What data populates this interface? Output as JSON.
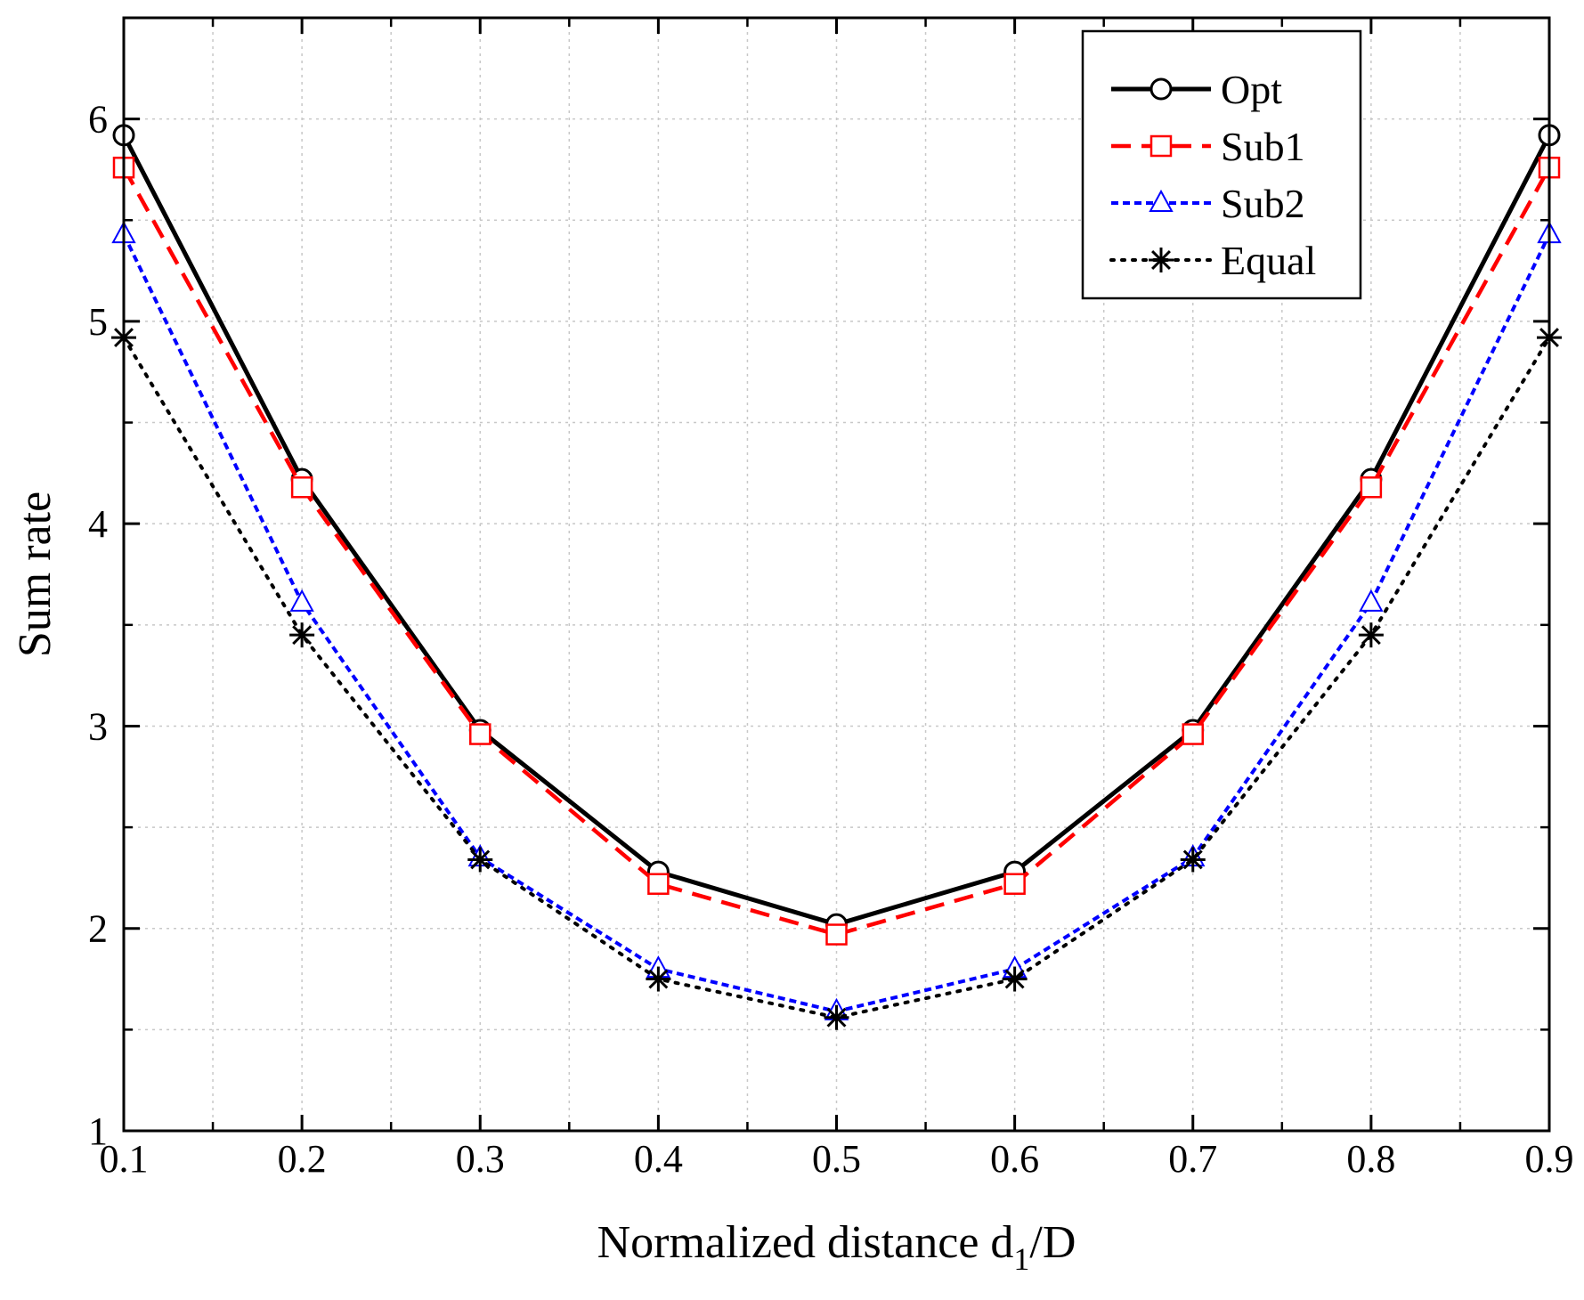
{
  "chart_data": {
    "type": "line",
    "xlabel": "Normalized distance d",
    "xlabel_sub": "1",
    "xlabel_suffix": "/D",
    "ylabel": "Sum rate",
    "xlim": [
      0.1,
      0.9
    ],
    "ylim": [
      1,
      6.5
    ],
    "x_ticks": [
      "0.1",
      "0.2",
      "0.3",
      "0.4",
      "0.5",
      "0.6",
      "0.7",
      "0.8",
      "0.9"
    ],
    "y_ticks": [
      "1",
      "2",
      "3",
      "4",
      "5",
      "6"
    ],
    "grid": true,
    "legend_position": "top-right",
    "x": [
      0.1,
      0.2,
      0.3,
      0.4,
      0.5,
      0.6,
      0.7,
      0.8,
      0.9
    ],
    "series": [
      {
        "name": "Opt",
        "color": "#000000",
        "line": "solid",
        "marker": "circle",
        "values": [
          5.92,
          4.22,
          2.98,
          2.28,
          2.02,
          2.28,
          2.98,
          4.22,
          5.92
        ]
      },
      {
        "name": "Sub1",
        "color": "#ff0000",
        "line": "dashed",
        "marker": "square",
        "values": [
          5.76,
          4.18,
          2.96,
          2.22,
          1.97,
          2.22,
          2.96,
          4.18,
          5.76
        ]
      },
      {
        "name": "Sub2",
        "color": "#0000ff",
        "line": "short-dashed",
        "marker": "triangle",
        "values": [
          5.43,
          3.61,
          2.35,
          1.8,
          1.59,
          1.8,
          2.35,
          3.61,
          5.43
        ]
      },
      {
        "name": "Equal",
        "color": "#000000",
        "line": "dotted",
        "marker": "asterisk",
        "values": [
          4.92,
          3.45,
          2.34,
          1.75,
          1.56,
          1.75,
          2.34,
          3.45,
          4.92
        ]
      }
    ]
  }
}
